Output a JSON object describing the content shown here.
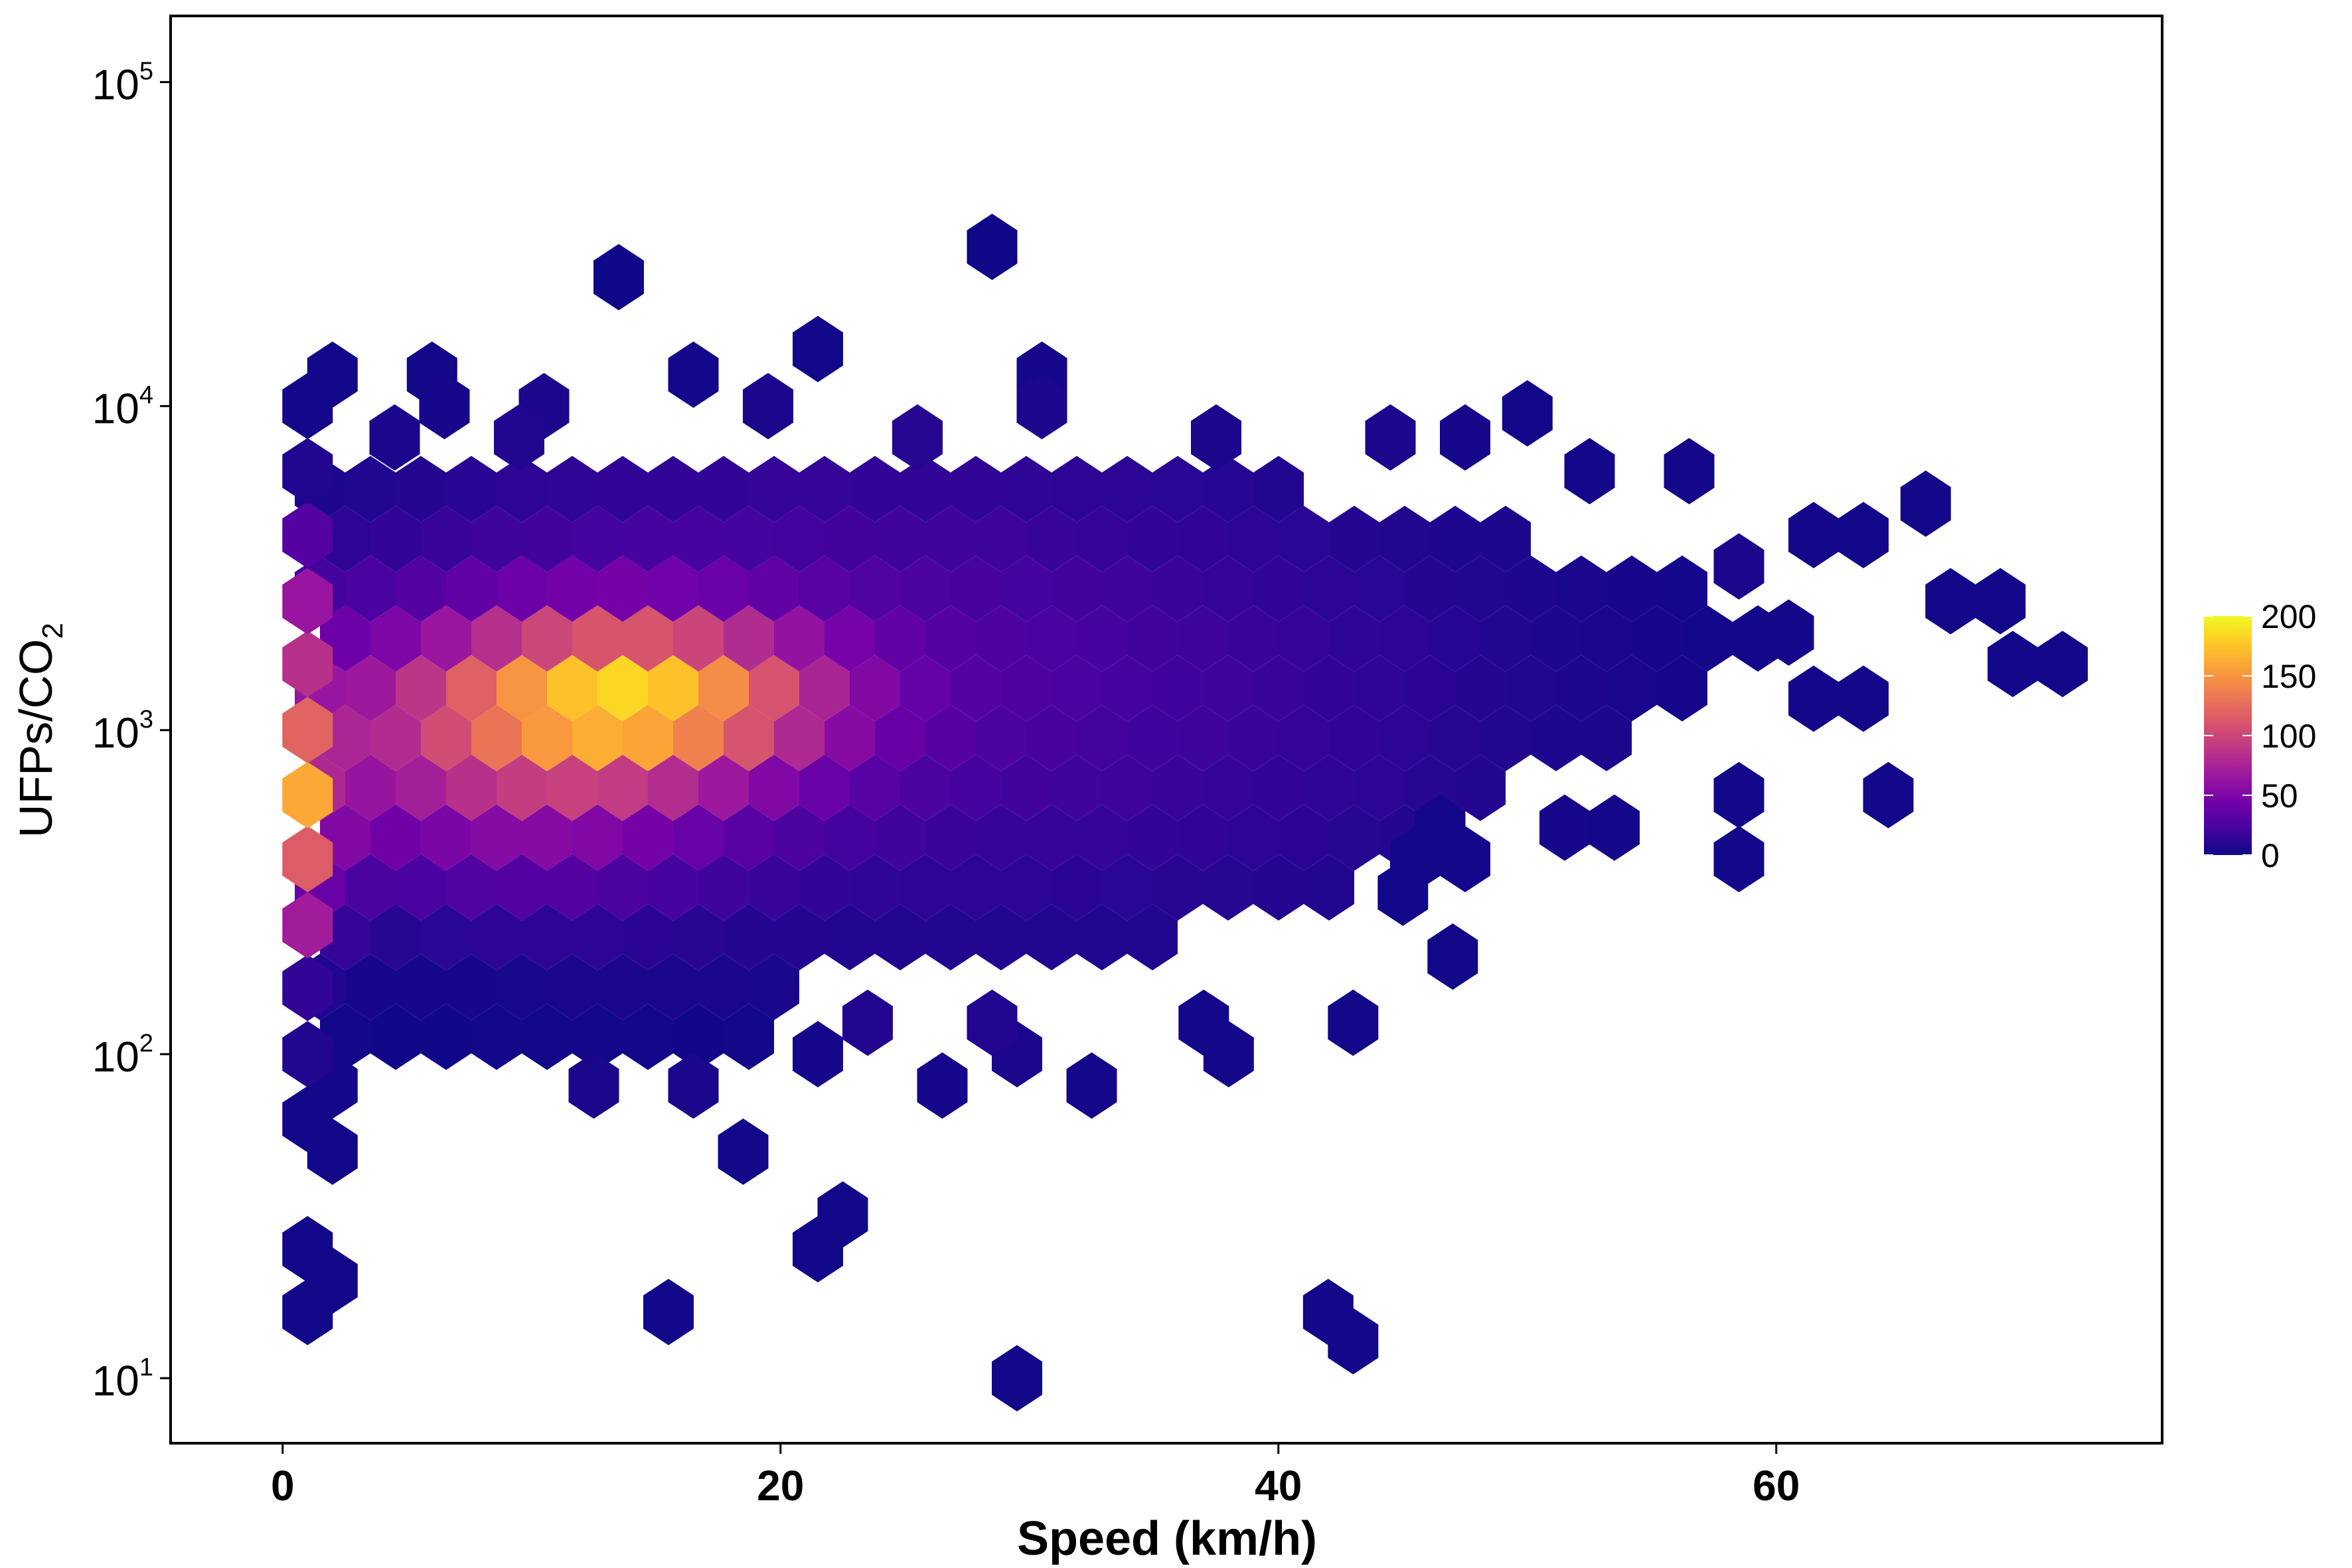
{
  "chart_data": {
    "type": "heatmap",
    "subtype": "hexbin",
    "xlabel": "Speed (km/h)",
    "ylabel": "UFPs/CO",
    "ylabel_subscript": "2",
    "xlim": [
      -4.5,
      75.5
    ],
    "ylim": [
      6.3,
      160000
    ],
    "y_scale": "log10",
    "x_ticks": [
      0,
      20,
      40,
      60
    ],
    "y_ticks": [
      {
        "value": 10,
        "base": "10",
        "exp": "1"
      },
      {
        "value": 100,
        "base": "10",
        "exp": "2"
      },
      {
        "value": 1000,
        "base": "10",
        "exp": "3"
      },
      {
        "value": 10000,
        "base": "10",
        "exp": "4"
      },
      {
        "value": 100000,
        "base": "10",
        "exp": "5"
      }
    ],
    "grid": false,
    "legend": {
      "position": "right",
      "title": "",
      "range": [
        0,
        200
      ],
      "ticks": [
        0,
        50,
        100,
        150,
        200
      ]
    },
    "color_scale": {
      "name": "plasma",
      "stops": [
        "#0d0887",
        "#46039f",
        "#7201a8",
        "#9c179e",
        "#bd3786",
        "#d8576b",
        "#ed7953",
        "#fb9f3a",
        "#fdca26",
        "#f0f921"
      ]
    },
    "hex_cells": [
      {
        "x": 1,
        "y": 16,
        "count": 2
      },
      {
        "x": 2,
        "y": 20,
        "count": 2
      },
      {
        "x": 1,
        "y": 25,
        "count": 2
      },
      {
        "x": 2,
        "y": 50,
        "count": 2
      },
      {
        "x": 1,
        "y": 63,
        "count": 3
      },
      {
        "x": 2,
        "y": 80,
        "count": 3
      },
      {
        "x": 1,
        "y": 100,
        "count": 8
      },
      {
        "x": 1,
        "y": 160,
        "count": 14
      },
      {
        "x": 1,
        "y": 250,
        "count": 70
      },
      {
        "x": 1,
        "y": 400,
        "count": 115
      },
      {
        "x": 1,
        "y": 630,
        "count": 160
      },
      {
        "x": 1,
        "y": 1000,
        "count": 120
      },
      {
        "x": 1,
        "y": 1600,
        "count": 85
      },
      {
        "x": 1,
        "y": 2500,
        "count": 65
      },
      {
        "x": 1,
        "y": 4000,
        "count": 30
      },
      {
        "x": 1,
        "y": 6300,
        "count": 8
      },
      {
        "x": 1,
        "y": 10000,
        "count": 3
      },
      {
        "x": 2,
        "y": 12500,
        "count": 2
      },
      {
        "x": 6,
        "y": 12500,
        "count": 2
      },
      {
        "x": 13.5,
        "y": 25000,
        "count": 1
      },
      {
        "x": 15.5,
        "y": 16,
        "count": 2
      },
      {
        "x": 18.5,
        "y": 50,
        "count": 2
      },
      {
        "x": 21.5,
        "y": 25,
        "count": 2
      },
      {
        "x": 22.5,
        "y": 32,
        "count": 2
      },
      {
        "x": 21.5,
        "y": 15000,
        "count": 2
      },
      {
        "x": 28.5,
        "y": 31000,
        "count": 1
      },
      {
        "x": 29.5,
        "y": 10,
        "count": 2
      },
      {
        "x": 32.5,
        "y": 80,
        "count": 3
      },
      {
        "x": 37,
        "y": 125,
        "count": 3
      },
      {
        "x": 38,
        "y": 100,
        "count": 3
      },
      {
        "x": 42,
        "y": 16,
        "count": 2
      },
      {
        "x": 43,
        "y": 13,
        "count": 2
      },
      {
        "x": 43,
        "y": 125,
        "count": 2
      },
      {
        "x": 47,
        "y": 200,
        "count": 2
      },
      {
        "x": 45,
        "y": 315,
        "count": 2
      },
      {
        "x": 50,
        "y": 9500,
        "count": 2
      },
      {
        "x": 58.5,
        "y": 400,
        "count": 2
      },
      {
        "x": 58.5,
        "y": 630,
        "count": 2
      },
      {
        "x": 64.5,
        "y": 630,
        "count": 2
      },
      {
        "x": 66,
        "y": 5000,
        "count": 2
      },
      {
        "x": 67,
        "y": 2500,
        "count": 2
      },
      {
        "x": 69,
        "y": 2500,
        "count": 2
      },
      {
        "x": 69.5,
        "y": 1600,
        "count": 2
      },
      {
        "x": 71.5,
        "y": 1600,
        "count": 2
      },
      {
        "x": 63.5,
        "y": 1250,
        "count": 2
      },
      {
        "x": 63.5,
        "y": 4000,
        "count": 2
      },
      {
        "x": 61.5,
        "y": 4000,
        "count": 3
      },
      {
        "x": 60.5,
        "y": 2000,
        "count": 3
      },
      {
        "x": 61.5,
        "y": 1250,
        "count": 3
      },
      {
        "x": 58.5,
        "y": 3200,
        "count": 5
      },
      {
        "x": 56.5,
        "y": 6300,
        "count": 3
      },
      {
        "x": 52.5,
        "y": 6300,
        "count": 3
      },
      {
        "x": 53.5,
        "y": 500,
        "count": 3
      },
      {
        "x": 51.5,
        "y": 500,
        "count": 4
      },
      {
        "x": 45.5,
        "y": 400,
        "count": 3
      },
      {
        "x": 47.5,
        "y": 400,
        "count": 3
      },
      {
        "x": 46.5,
        "y": 500,
        "count": 3
      },
      {
        "x": 44.5,
        "y": 8000,
        "count": 6
      },
      {
        "x": 47.5,
        "y": 8000,
        "count": 4
      },
      {
        "x": 37.5,
        "y": 8000,
        "count": 6
      },
      {
        "x": 30.5,
        "y": 12500,
        "count": 4
      },
      {
        "x": 30.5,
        "y": 10000,
        "count": 6
      },
      {
        "x": 25.5,
        "y": 8000,
        "count": 10
      },
      {
        "x": 19.5,
        "y": 10000,
        "count": 5
      },
      {
        "x": 16.5,
        "y": 12500,
        "count": 3
      },
      {
        "x": 10.5,
        "y": 10000,
        "count": 6
      },
      {
        "x": 6.5,
        "y": 10000,
        "count": 4
      },
      {
        "x": 4.5,
        "y": 8000,
        "count": 5
      },
      {
        "x": 9.5,
        "y": 8000,
        "count": 8
      },
      {
        "x": 12.5,
        "y": 80,
        "count": 5
      },
      {
        "x": 16.5,
        "y": 80,
        "count": 5
      },
      {
        "x": 21.5,
        "y": 100,
        "count": 4
      },
      {
        "x": 26.5,
        "y": 80,
        "count": 4
      },
      {
        "x": 29.5,
        "y": 100,
        "count": 5
      },
      {
        "x": 23.5,
        "y": 125,
        "count": 8
      },
      {
        "x": 28.5,
        "y": 125,
        "count": 8
      }
    ]
  }
}
